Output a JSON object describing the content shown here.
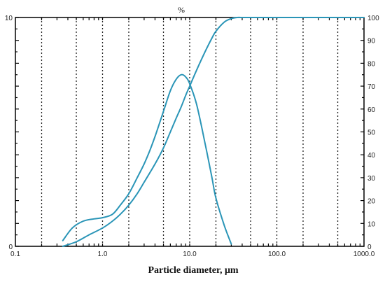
{
  "chart_data": {
    "type": "line",
    "x_scale": "log",
    "xlim": [
      0.1,
      1000
    ],
    "ylim_left": [
      0,
      10
    ],
    "ylim_right": [
      0,
      100
    ],
    "x_tick_labels": [
      "0.1",
      "1.0",
      "10.0",
      "100.0",
      "1000.0"
    ],
    "x_tick_values": [
      0.1,
      1,
      10,
      100,
      1000
    ],
    "y_left_tick_labels": [
      "0",
      "10"
    ],
    "y_right_tick_labels": [
      "0",
      "10",
      "20",
      "30",
      "40",
      "50",
      "60",
      "70",
      "80",
      "90",
      "100"
    ],
    "y_unit_label": "%",
    "xlabel": "Particle diameter,  μm",
    "grid": "vertical dotted lines at 1, 2, 5 per decade",
    "line_color": "#2a95b7",
    "series": [
      {
        "axis": "left",
        "x": [
          0.35,
          0.45,
          0.6,
          0.8,
          1.0,
          1.3,
          1.6,
          2.0,
          2.5,
          3.0,
          3.5,
          4.0,
          5.0,
          6.0,
          7.0,
          8.0,
          9.0,
          10.0,
          12.0,
          15.0,
          18.0,
          20.0,
          25.0,
          30.0
        ],
        "y": [
          0.25,
          0.8,
          1.1,
          1.2,
          1.25,
          1.4,
          1.8,
          2.3,
          3.0,
          3.6,
          4.2,
          4.8,
          5.9,
          6.8,
          7.3,
          7.5,
          7.4,
          7.1,
          6.2,
          4.5,
          3.0,
          2.1,
          0.9,
          0.1
        ]
      },
      {
        "axis": "right",
        "x": [
          0.35,
          0.5,
          0.7,
          1.0,
          1.3,
          1.6,
          2.0,
          2.5,
          3.0,
          4.0,
          5.0,
          6.0,
          7.0,
          8.0,
          9.0,
          10.0,
          12.0,
          15.0,
          18.0,
          20.0,
          25.0,
          30.0,
          35.0,
          40.0,
          60.0,
          100.0,
          1000.0
        ],
        "y": [
          0,
          2,
          5,
          8,
          11,
          14,
          18,
          23,
          28,
          36,
          43,
          50,
          56,
          61,
          66,
          70,
          77,
          85,
          91,
          94,
          98,
          99.5,
          100,
          100,
          100,
          100,
          100
        ]
      }
    ]
  }
}
